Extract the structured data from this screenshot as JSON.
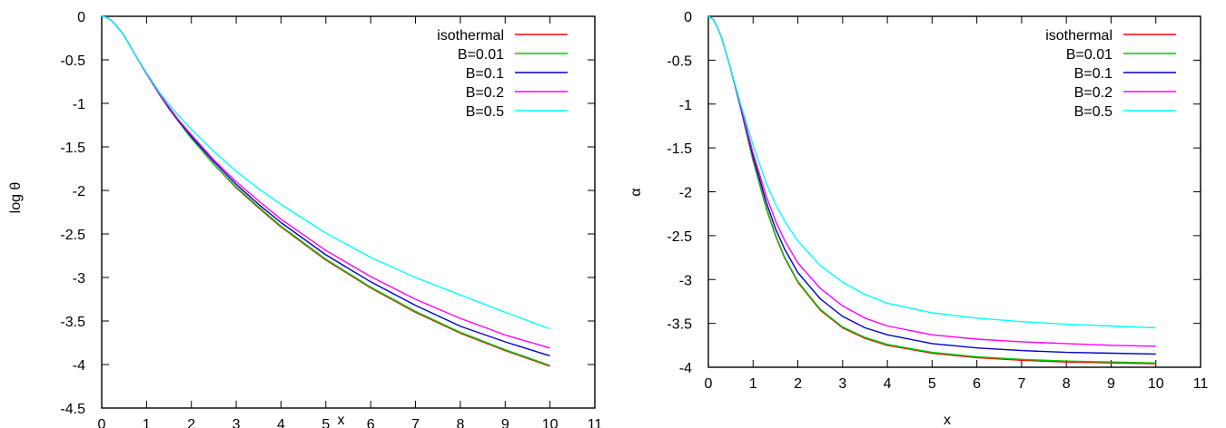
{
  "chart_data": [
    {
      "type": "line",
      "title": "",
      "xlabel": "x",
      "ylabel": "log θ",
      "xlim": [
        0,
        11
      ],
      "ylim": [
        -4.5,
        0
      ],
      "xticks": [
        "0",
        "1",
        "2",
        "3",
        "4",
        "5",
        "6",
        "7",
        "8",
        "9",
        "10",
        "11"
      ],
      "yticks": [
        "0",
        "-0.5",
        "-1",
        "-1.5",
        "-2",
        "-2.5",
        "-3",
        "-3.5",
        "-4",
        "-4.5"
      ],
      "grid": false,
      "legend_position": "top-right",
      "x": [
        0,
        0.1,
        0.2,
        0.3,
        0.5,
        0.7,
        1,
        1.3,
        1.5,
        1.7,
        2,
        2.5,
        3,
        3.5,
        4,
        5,
        6,
        7,
        8,
        9,
        10
      ],
      "series": [
        {
          "name": "isothermal",
          "color": "#ff0000",
          "values": [
            0,
            -0.01,
            -0.04,
            -0.09,
            -0.22,
            -0.4,
            -0.66,
            -0.91,
            -1.06,
            -1.2,
            -1.4,
            -1.7,
            -1.97,
            -2.2,
            -2.42,
            -2.8,
            -3.12,
            -3.4,
            -3.64,
            -3.84,
            -4.02
          ]
        },
        {
          "name": "B=0.01",
          "color": "#00cc00",
          "values": [
            0,
            -0.01,
            -0.04,
            -0.09,
            -0.22,
            -0.4,
            -0.66,
            -0.91,
            -1.06,
            -1.2,
            -1.4,
            -1.7,
            -1.96,
            -2.19,
            -2.41,
            -2.79,
            -3.11,
            -3.39,
            -3.63,
            -3.83,
            -4.01
          ]
        },
        {
          "name": "B=0.1",
          "color": "#0000cc",
          "values": [
            0,
            -0.01,
            -0.04,
            -0.09,
            -0.22,
            -0.4,
            -0.66,
            -0.9,
            -1.05,
            -1.19,
            -1.38,
            -1.67,
            -1.93,
            -2.16,
            -2.37,
            -2.74,
            -3.05,
            -3.32,
            -3.56,
            -3.74,
            -3.9
          ]
        },
        {
          "name": "B=0.2",
          "color": "#ff00ff",
          "values": [
            0,
            -0.01,
            -0.04,
            -0.09,
            -0.22,
            -0.4,
            -0.66,
            -0.9,
            -1.04,
            -1.18,
            -1.36,
            -1.65,
            -1.9,
            -2.12,
            -2.33,
            -2.69,
            -2.99,
            -3.25,
            -3.47,
            -3.66,
            -3.81
          ]
        },
        {
          "name": "B=0.5",
          "color": "#00ffff",
          "values": [
            0,
            -0.01,
            -0.04,
            -0.09,
            -0.22,
            -0.4,
            -0.65,
            -0.88,
            -1.01,
            -1.13,
            -1.3,
            -1.55,
            -1.78,
            -1.98,
            -2.16,
            -2.49,
            -2.77,
            -3.0,
            -3.2,
            -3.4,
            -3.59
          ]
        }
      ]
    },
    {
      "type": "line",
      "title": "",
      "xlabel": "x",
      "ylabel": "α",
      "xlim": [
        0,
        11
      ],
      "ylim": [
        -4,
        0
      ],
      "xticks": [
        "0",
        "1",
        "2",
        "3",
        "4",
        "5",
        "6",
        "7",
        "8",
        "9",
        "10",
        "11"
      ],
      "yticks": [
        "0",
        "-0.5",
        "-1",
        "-1.5",
        "-2",
        "-2.5",
        "-3",
        "-3.5",
        "-4"
      ],
      "grid": false,
      "legend_position": "top-right",
      "x": [
        0,
        0.1,
        0.2,
        0.3,
        0.5,
        0.7,
        1,
        1.3,
        1.5,
        1.7,
        2,
        2.5,
        3,
        3.5,
        4,
        5,
        6,
        7,
        8,
        9,
        10
      ],
      "series": [
        {
          "name": "isothermal",
          "color": "#ff0000",
          "values": [
            0,
            -0.03,
            -0.12,
            -0.25,
            -0.6,
            -1.0,
            -1.65,
            -2.2,
            -2.5,
            -2.75,
            -3.03,
            -3.35,
            -3.55,
            -3.67,
            -3.75,
            -3.84,
            -3.89,
            -3.92,
            -3.94,
            -3.95,
            -3.96
          ]
        },
        {
          "name": "B=0.01",
          "color": "#00cc00",
          "values": [
            0,
            -0.03,
            -0.12,
            -0.25,
            -0.6,
            -1.0,
            -1.64,
            -2.19,
            -2.49,
            -2.74,
            -3.02,
            -3.34,
            -3.54,
            -3.66,
            -3.74,
            -3.83,
            -3.88,
            -3.91,
            -3.93,
            -3.94,
            -3.95
          ]
        },
        {
          "name": "B=0.1",
          "color": "#0000cc",
          "values": [
            0,
            -0.03,
            -0.12,
            -0.25,
            -0.6,
            -0.99,
            -1.6,
            -2.13,
            -2.42,
            -2.65,
            -2.92,
            -3.22,
            -3.42,
            -3.55,
            -3.63,
            -3.73,
            -3.78,
            -3.81,
            -3.83,
            -3.84,
            -3.85
          ]
        },
        {
          "name": "B=0.2",
          "color": "#ff00ff",
          "values": [
            0,
            -0.03,
            -0.12,
            -0.25,
            -0.6,
            -0.98,
            -1.56,
            -2.06,
            -2.33,
            -2.55,
            -2.81,
            -3.1,
            -3.3,
            -3.44,
            -3.53,
            -3.63,
            -3.68,
            -3.71,
            -3.73,
            -3.75,
            -3.76
          ]
        },
        {
          "name": "B=0.5",
          "color": "#00ffff",
          "values": [
            0,
            -0.03,
            -0.12,
            -0.25,
            -0.6,
            -0.96,
            -1.47,
            -1.91,
            -2.14,
            -2.33,
            -2.56,
            -2.84,
            -3.03,
            -3.17,
            -3.27,
            -3.38,
            -3.44,
            -3.48,
            -3.51,
            -3.53,
            -3.55
          ]
        }
      ]
    }
  ]
}
